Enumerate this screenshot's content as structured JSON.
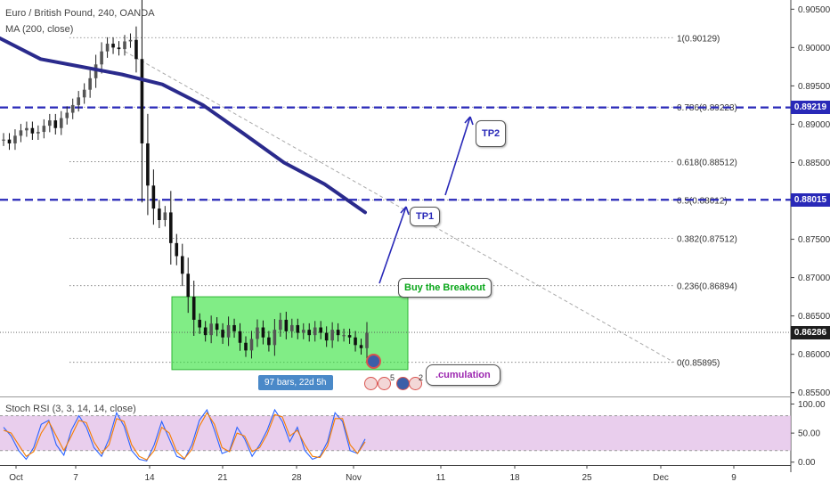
{
  "chart_data": [
    {
      "type": "candlestick",
      "title": "Euro / British Pound, 240, OANDA",
      "ma_label": "MA (200, close)",
      "ylim": [
        0.8545,
        0.9062
      ],
      "yticks": [
        "0.90500",
        "0.90000",
        "0.89500",
        "0.89000",
        "0.88500",
        "0.88000",
        "0.87500",
        "0.87000",
        "0.86500",
        "0.86000",
        "0.85500"
      ],
      "xticks": [
        "Oct",
        "7",
        "14",
        "21",
        "28",
        "Nov",
        "11",
        "18",
        "25",
        "Dec",
        "9"
      ],
      "close_path": [
        0.888,
        0.8875,
        0.8885,
        0.8892,
        0.8895,
        0.8888,
        0.889,
        0.8898,
        0.8905,
        0.8895,
        0.8908,
        0.8915,
        0.8925,
        0.8935,
        0.8945,
        0.896,
        0.8978,
        0.8995,
        0.9005,
        0.9,
        0.8998,
        0.9008,
        0.901,
        0.8985,
        0.8875,
        0.882,
        0.879,
        0.8775,
        0.8785,
        0.8745,
        0.8728,
        0.8705,
        0.8675,
        0.8645,
        0.8635,
        0.8625,
        0.864,
        0.8632,
        0.8622,
        0.8638,
        0.863,
        0.8615,
        0.8605,
        0.862,
        0.8635,
        0.8622,
        0.8612,
        0.8632,
        0.8645,
        0.863,
        0.8638,
        0.8628,
        0.8632,
        0.8625,
        0.8635,
        0.8628,
        0.8618,
        0.8632,
        0.8625,
        0.8625,
        0.8622,
        0.8612,
        0.8608,
        0.8628
      ],
      "ma200": [
        0.9012,
        0.8985,
        0.8975,
        0.8965,
        0.8952,
        0.8925,
        0.8888,
        0.885,
        0.8822,
        0.8785
      ],
      "levels": [
        {
          "ratio": "1",
          "value": 0.90129,
          "label": "1(0.90129)"
        },
        {
          "ratio": "0.786",
          "value": 0.89223,
          "label": "0.786(0.89223)"
        },
        {
          "ratio": "0.618",
          "value": 0.88512,
          "label": "0.618(0.88512)"
        },
        {
          "ratio": "0.5",
          "value": 0.88012,
          "label": "0.5(0.88012)"
        },
        {
          "ratio": "0.382",
          "value": 0.87512,
          "label": "0.382(0.87512)"
        },
        {
          "ratio": "0.236",
          "value": 0.86894,
          "label": "0.236(0.86894)"
        },
        {
          "ratio": "0",
          "value": 0.85895,
          "label": "0(0.85895)"
        }
      ],
      "horizontal_lines": [
        0.89219,
        0.88015
      ],
      "last_price": 0.86286,
      "price_tags": [
        {
          "value": 0.89219,
          "label": "0.89219",
          "color": "#2929b8"
        },
        {
          "value": 0.88015,
          "label": "0.88015",
          "color": "#2929b8"
        },
        {
          "value": 0.86286,
          "label": "0.86286",
          "color": "#1e1e1e"
        }
      ],
      "range_box": {
        "top": 0.8675,
        "bottom": 0.858,
        "color": "#34e23b"
      },
      "annotations": [
        "Buy the Breakout",
        "TP1",
        "TP2",
        ".cumulation"
      ],
      "range_label": "97 bars, 22d 5h",
      "event_counts": [
        "5",
        "2"
      ]
    },
    {
      "type": "line",
      "title": "Stoch RSI (3, 3, 14, 14, close)",
      "ylim": [
        -5,
        110
      ],
      "yticks": [
        "100.00",
        "50.00",
        "0.00"
      ],
      "band": [
        20,
        80
      ],
      "series": [
        {
          "color": "#2962ff",
          "values": [
            60,
            45,
            20,
            5,
            25,
            65,
            72,
            30,
            12,
            55,
            80,
            60,
            25,
            10,
            40,
            85,
            62,
            20,
            5,
            2,
            30,
            70,
            40,
            10,
            5,
            30,
            72,
            90,
            55,
            15,
            20,
            60,
            40,
            10,
            30,
            55,
            90,
            70,
            35,
            60,
            20,
            5,
            10,
            35,
            85,
            70,
            20,
            15,
            40
          ]
        },
        {
          "color": "#f57c00",
          "values": [
            55,
            50,
            30,
            10,
            18,
            50,
            70,
            45,
            20,
            45,
            72,
            68,
            35,
            15,
            30,
            75,
            70,
            30,
            10,
            4,
            20,
            60,
            50,
            18,
            6,
            22,
            62,
            85,
            65,
            25,
            18,
            50,
            45,
            18,
            25,
            48,
            82,
            78,
            45,
            55,
            30,
            10,
            8,
            28,
            75,
            75,
            30,
            15,
            35
          ]
        }
      ]
    }
  ]
}
